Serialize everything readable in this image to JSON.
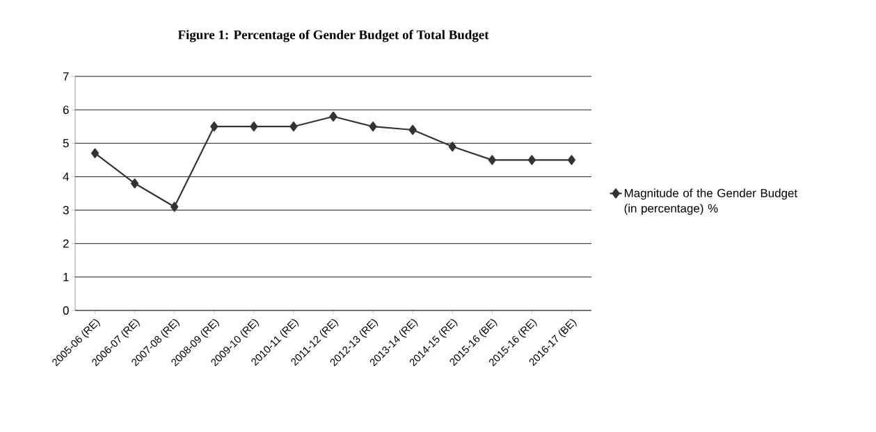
{
  "chart_data": {
    "type": "line",
    "title": "Figure 1: Percentage of Gender Budget of Total Budget",
    "categories": [
      "2005-06 (RE)",
      "2006-07 (RE)",
      "2007-08 (RE)",
      "2008-09 (RE)",
      "2009-10 (RE)",
      "2010-11 (RE)",
      "2011-12 (RE)",
      "2012-13 (RE)",
      "2013-14 (RE)",
      "2014-15 (RE)",
      "2015-16 (BE)",
      "2015-16 (RE)",
      "2016-17 (BE)"
    ],
    "series": [
      {
        "name": "Magnitude of the Gender Budget  (in percentage) %",
        "color": "#333333",
        "values": [
          4.7,
          3.8,
          3.1,
          5.5,
          5.5,
          5.5,
          5.8,
          5.5,
          5.4,
          4.9,
          4.5,
          4.5,
          4.5
        ]
      }
    ],
    "ylim": [
      0,
      7
    ],
    "yticks": [
      0,
      1,
      2,
      3,
      4,
      5,
      6,
      7
    ],
    "grid": "y",
    "legend": "right",
    "marker": "diamond",
    "line_style": "solid"
  }
}
